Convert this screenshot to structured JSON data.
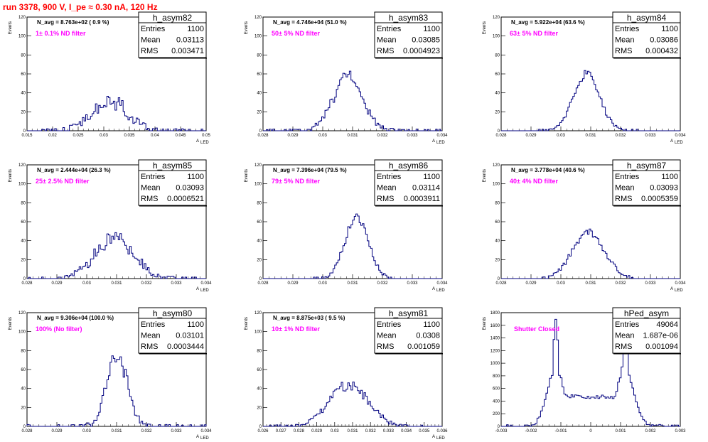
{
  "page_title": "run 3378,   900 V, I_pe ≈ 0.30 nA, 120 Hz",
  "colors": {
    "title": "#ff0000",
    "annotation": "#ff00ff",
    "histogram": "#00007f",
    "frame": "#000000"
  },
  "chart_data": [
    {
      "type": "histogram",
      "name": "h_asym82",
      "navg": "N_avg = 8.763e+02 ( 0.9 %)",
      "annotation": "1± 0.1% ND filter",
      "stats": [
        [
          "Entries",
          "1100"
        ],
        [
          "Mean",
          "0.03113"
        ],
        [
          "RMS",
          "0.003471"
        ]
      ],
      "xlim": [
        0.015,
        0.05
      ],
      "ylim": [
        0,
        120
      ],
      "xticks": [
        "0.015",
        "0.02",
        "0.025",
        "0.03",
        "0.035",
        "0.04",
        "0.045",
        "0.05"
      ],
      "yticks": [
        "0",
        "20",
        "40",
        "60",
        "80",
        "100",
        "120"
      ],
      "xlabel": "A",
      "xlabel_sub": "LED",
      "ylabel": "Events",
      "mean": 0.03113,
      "sigma": 0.003471,
      "peak": 32,
      "noise": 9,
      "seed": 1
    },
    {
      "type": "histogram",
      "name": "h_asym83",
      "navg": "N_avg = 4.746e+04 (51.0 %)",
      "annotation": "50± 5% ND filter",
      "stats": [
        [
          "Entries",
          "1100"
        ],
        [
          "Mean",
          "0.03085"
        ],
        [
          "RMS",
          "0.0004923"
        ]
      ],
      "xlim": [
        0.028,
        0.034
      ],
      "ylim": [
        0,
        120
      ],
      "xticks": [
        "0.028",
        "0.029",
        "0.03",
        "0.031",
        "0.032",
        "0.033",
        "0.034"
      ],
      "yticks": [
        "0",
        "20",
        "40",
        "60",
        "80",
        "100",
        "120"
      ],
      "xlabel": "A",
      "xlabel_sub": "LED",
      "ylabel": "Events",
      "mean": 0.03085,
      "sigma": 0.0004923,
      "peak": 57,
      "noise": 8,
      "seed": 2
    },
    {
      "type": "histogram",
      "name": "h_asym84",
      "navg": "N_avg = 5.922e+04 (63.6 %)",
      "annotation": "63± 5% ND filter",
      "stats": [
        [
          "Entries",
          "1100"
        ],
        [
          "Mean",
          "0.03086"
        ],
        [
          "RMS",
          "0.000432"
        ]
      ],
      "xlim": [
        0.028,
        0.034
      ],
      "ylim": [
        0,
        120
      ],
      "xticks": [
        "0.028",
        "0.029",
        "0.03",
        "0.031",
        "0.032",
        "0.033",
        "0.034"
      ],
      "yticks": [
        "0",
        "20",
        "40",
        "60",
        "80",
        "100",
        "120"
      ],
      "xlabel": "A",
      "xlabel_sub": "LED",
      "ylabel": "Events",
      "mean": 0.03086,
      "sigma": 0.000432,
      "peak": 60,
      "noise": 4,
      "seed": 3
    },
    {
      "type": "histogram",
      "name": "h_asym85",
      "navg": "N_avg = 2.444e+04 (26.3 %)",
      "annotation": "25± 2.5% ND filter",
      "stats": [
        [
          "Entries",
          "1100"
        ],
        [
          "Mean",
          "0.03093"
        ],
        [
          "RMS",
          "0.0006521"
        ]
      ],
      "xlim": [
        0.028,
        0.034
      ],
      "ylim": [
        0,
        120
      ],
      "xticks": [
        "0.028",
        "0.029",
        "0.03",
        "0.031",
        "0.032",
        "0.033",
        "0.034"
      ],
      "yticks": [
        "0",
        "20",
        "40",
        "60",
        "80",
        "100",
        "120"
      ],
      "xlabel": "A",
      "xlabel_sub": "LED",
      "ylabel": "Events",
      "mean": 0.03093,
      "sigma": 0.0006521,
      "peak": 42,
      "noise": 8,
      "seed": 4
    },
    {
      "type": "histogram",
      "name": "h_asym86",
      "navg": "N_avg = 7.396e+04 (79.5 %)",
      "annotation": "79± 5% ND filter",
      "stats": [
        [
          "Entries",
          "1100"
        ],
        [
          "Mean",
          "0.03114"
        ],
        [
          "RMS",
          "0.0003911"
        ]
      ],
      "xlim": [
        0.028,
        0.034
      ],
      "ylim": [
        0,
        120
      ],
      "xticks": [
        "0.028",
        "0.029",
        "0.03",
        "0.031",
        "0.032",
        "0.033",
        "0.034"
      ],
      "yticks": [
        "0",
        "20",
        "40",
        "60",
        "80",
        "100",
        "120"
      ],
      "xlabel": "A",
      "xlabel_sub": "LED",
      "ylabel": "Events",
      "mean": 0.03114,
      "sigma": 0.0003911,
      "peak": 66,
      "noise": 5,
      "seed": 5
    },
    {
      "type": "histogram",
      "name": "h_asym87",
      "navg": "N_avg = 3.778e+04 (40.6 %)",
      "annotation": "40± 4% ND filter",
      "stats": [
        [
          "Entries",
          "1100"
        ],
        [
          "Mean",
          "0.03093"
        ],
        [
          "RMS",
          "0.0005359"
        ]
      ],
      "xlim": [
        0.028,
        0.034
      ],
      "ylim": [
        0,
        120
      ],
      "xticks": [
        "0.028",
        "0.029",
        "0.03",
        "0.031",
        "0.032",
        "0.033",
        "0.034"
      ],
      "yticks": [
        "0",
        "20",
        "40",
        "60",
        "80",
        "100",
        "120"
      ],
      "xlabel": "A",
      "xlabel_sub": "LED",
      "ylabel": "Events",
      "mean": 0.03093,
      "sigma": 0.0005359,
      "peak": 49,
      "noise": 4,
      "seed": 6
    },
    {
      "type": "histogram",
      "name": "h_asym80",
      "navg": "N_avg = 9.306e+04 (100.0 %)",
      "annotation": "100% (No filter)",
      "stats": [
        [
          "Entries",
          "1100"
        ],
        [
          "Mean",
          "0.03101"
        ],
        [
          "RMS",
          "0.0003444"
        ]
      ],
      "xlim": [
        0.028,
        0.034
      ],
      "ylim": [
        0,
        120
      ],
      "xticks": [
        "0.028",
        "0.029",
        "0.03",
        "0.031",
        "0.032",
        "0.033",
        "0.034"
      ],
      "yticks": [
        "0",
        "20",
        "40",
        "60",
        "80",
        "100",
        "120"
      ],
      "xlabel": "A",
      "xlabel_sub": "LED",
      "ylabel": "Events",
      "mean": 0.03101,
      "sigma": 0.0003444,
      "peak": 76,
      "noise": 9,
      "seed": 7
    },
    {
      "type": "histogram",
      "name": "h_asym81",
      "navg": "N_avg = 8.875e+03 ( 9.5 %)",
      "annotation": "10± 1% ND filter",
      "stats": [
        [
          "Entries",
          "1100"
        ],
        [
          "Mean",
          "0.0308"
        ],
        [
          "RMS",
          "0.001059"
        ]
      ],
      "xlim": [
        0.026,
        0.036
      ],
      "ylim": [
        0,
        120
      ],
      "xticks": [
        "0.026",
        "0.027",
        "0.028",
        "0.029",
        "0.03",
        "0.031",
        "0.032",
        "0.033",
        "0.034",
        "0.035",
        "0.036"
      ],
      "yticks": [
        "0",
        "20",
        "40",
        "60",
        "80",
        "100",
        "120"
      ],
      "xlabel": "A",
      "xlabel_sub": "LED",
      "ylabel": "Events",
      "mean": 0.0308,
      "sigma": 0.001059,
      "peak": 44,
      "noise": 6,
      "seed": 8
    },
    {
      "type": "histogram",
      "name": "hPed_asym",
      "navg": "",
      "annotation": "Shutter Closed",
      "stats": [
        [
          "Entries",
          "49064"
        ],
        [
          "Mean",
          "1.687e-06"
        ],
        [
          "RMS",
          "0.001094"
        ]
      ],
      "xlim": [
        -0.003,
        0.003
      ],
      "ylim": [
        0,
        1800
      ],
      "xticks": [
        "-0.003",
        "-0.002",
        "-0.001",
        "0",
        "0.001",
        "0.002",
        "0.003"
      ],
      "yticks": [
        "0",
        "200",
        "400",
        "600",
        "800",
        "1000",
        "1200",
        "1400",
        "1600",
        "1800"
      ],
      "xlabel": "",
      "xlabel_sub": "",
      "ylabel": "Events",
      "bimodal": true,
      "mean": 0,
      "sigma": 0.001094,
      "peak1": -0.00117,
      "peak2": 0.00115,
      "peak_height": 1700,
      "peak_sigma": 9e-05,
      "valley_level": 470,
      "noise": 30,
      "seed": 9
    }
  ]
}
